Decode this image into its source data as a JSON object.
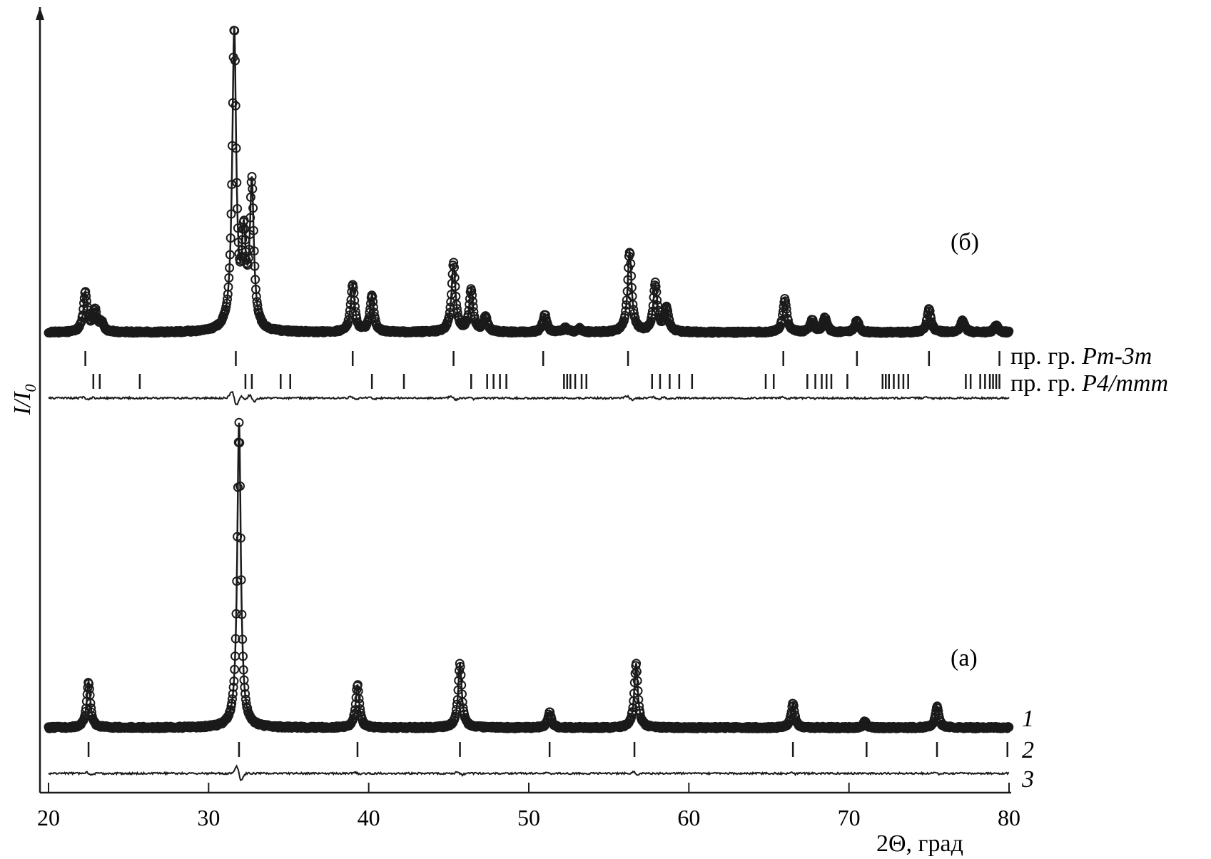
{
  "chart_data": {
    "type": "line",
    "title": "",
    "xlabel": "2Θ, град",
    "ylabel_main": "I/I",
    "ylabel_sub": "0",
    "xlim": [
      19.5,
      80
    ],
    "xticks": [
      20,
      30,
      40,
      50,
      60,
      70,
      80
    ],
    "xtick_labels": [
      "20",
      "30",
      "40",
      "50",
      "60",
      "70",
      "80"
    ],
    "grid": false,
    "legend": "none",
    "line_color": "#1a1a1a",
    "panels": [
      {
        "label": "(б)",
        "peaks": [
          {
            "pos": 22.3,
            "height": 0.13
          },
          {
            "pos": 22.9,
            "height": 0.07
          },
          {
            "pos": 23.3,
            "height": 0.03
          },
          {
            "pos": 31.6,
            "height": 1.0
          },
          {
            "pos": 32.2,
            "height": 0.28
          },
          {
            "pos": 32.7,
            "height": 0.48
          },
          {
            "pos": 39.0,
            "height": 0.16
          },
          {
            "pos": 40.2,
            "height": 0.12
          },
          {
            "pos": 45.3,
            "height": 0.23
          },
          {
            "pos": 46.4,
            "height": 0.14
          },
          {
            "pos": 47.3,
            "height": 0.05
          },
          {
            "pos": 51.0,
            "height": 0.06
          },
          {
            "pos": 52.3,
            "height": 0.015
          },
          {
            "pos": 53.2,
            "height": 0.012
          },
          {
            "pos": 56.3,
            "height": 0.27
          },
          {
            "pos": 57.9,
            "height": 0.16
          },
          {
            "pos": 58.6,
            "height": 0.08
          },
          {
            "pos": 66.0,
            "height": 0.11
          },
          {
            "pos": 67.7,
            "height": 0.04
          },
          {
            "pos": 68.5,
            "height": 0.05
          },
          {
            "pos": 70.5,
            "height": 0.04
          },
          {
            "pos": 75.0,
            "height": 0.08
          },
          {
            "pos": 77.1,
            "height": 0.04
          },
          {
            "pos": 79.2,
            "height": 0.025
          }
        ],
        "ticks_rows": [
          {
            "label": "пр. гр. ",
            "label_italic": "Pm-3m",
            "positions": [
              22.3,
              31.7,
              39.0,
              45.3,
              50.9,
              56.2,
              65.9,
              70.5,
              75.0,
              79.4
            ]
          },
          {
            "label": "пр. гр. ",
            "label_italic": "P4/mmm",
            "positions": [
              22.8,
              23.2,
              25.7,
              32.3,
              32.7,
              34.5,
              35.1,
              40.2,
              42.2,
              46.4,
              47.4,
              47.8,
              48.2,
              48.6,
              52.2,
              52.4,
              52.6,
              52.9,
              53.3,
              53.6,
              57.7,
              58.2,
              58.8,
              59.4,
              60.2,
              64.8,
              65.3,
              67.4,
              67.9,
              68.3,
              68.6,
              68.9,
              69.9,
              72.1,
              72.3,
              72.5,
              72.8,
              73.1,
              73.4,
              73.7,
              77.3,
              77.6,
              78.2,
              78.5,
              78.8,
              79.0,
              79.2,
              79.4
            ]
          }
        ]
      },
      {
        "label": "(а)",
        "peaks": [
          {
            "pos": 22.5,
            "height": 0.15
          },
          {
            "pos": 31.9,
            "height": 1.0
          },
          {
            "pos": 39.3,
            "height": 0.14
          },
          {
            "pos": 45.7,
            "height": 0.21
          },
          {
            "pos": 51.3,
            "height": 0.05
          },
          {
            "pos": 56.7,
            "height": 0.21
          },
          {
            "pos": 66.5,
            "height": 0.08
          },
          {
            "pos": 71.0,
            "height": 0.02
          },
          {
            "pos": 75.5,
            "height": 0.07
          }
        ],
        "ticks_rows": [
          {
            "positions": [
              22.5,
              31.9,
              39.3,
              45.7,
              51.3,
              56.6,
              66.5,
              71.1,
              75.5,
              79.9
            ]
          }
        ]
      }
    ],
    "curve_labels": [
      "1",
      "2",
      "3"
    ]
  }
}
